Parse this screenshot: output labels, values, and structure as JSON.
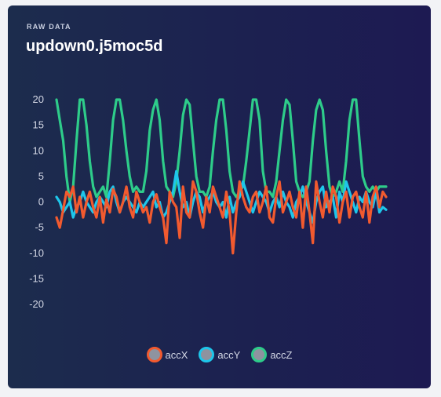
{
  "card": {
    "eyebrow": "RAW DATA",
    "title": "updown0.j5moc5d"
  },
  "chart_data": {
    "type": "line",
    "title": "",
    "xlabel": "",
    "ylabel": "",
    "ylim": [
      -20,
      20
    ],
    "yticks": [
      20,
      15,
      10,
      5,
      0,
      -5,
      -10,
      -15,
      -20
    ],
    "grid": false,
    "legend_position": "bottom-center",
    "series": [
      {
        "name": "accX",
        "color": "#f25a2f",
        "values": [
          -3.0,
          -5.0,
          -1.5,
          2.0,
          1.0,
          3.0,
          -2.0,
          1.0,
          -3.0,
          0.0,
          2.0,
          -1.0,
          -3.0,
          1.0,
          -4.0,
          0.5,
          -2.0,
          2.5,
          1.0,
          -2.0,
          0.0,
          3.0,
          -1.0,
          -3.0,
          2.0,
          0.0,
          -2.0,
          -1.0,
          -4.0,
          0.0,
          1.5,
          -1.0,
          -3.0,
          -8.0,
          2.0,
          0.0,
          -1.0,
          -7.0,
          3.0,
          -2.0,
          -3.0,
          4.0,
          2.0,
          -2.0,
          -5.0,
          1.0,
          -2.0,
          3.0,
          1.0,
          -1.0,
          -3.0,
          2.0,
          -2.0,
          -10.0,
          -2.0,
          4.0,
          1.0,
          -1.0,
          -2.0,
          1.0,
          2.0,
          -2.0,
          0.0,
          3.0,
          -3.0,
          -4.0,
          1.0,
          4.0,
          -2.0,
          0.0,
          2.0,
          -1.0,
          -3.0,
          2.0,
          -5.0,
          3.0,
          -2.0,
          -8.0,
          4.0,
          0.0,
          -3.0,
          2.0,
          -2.0,
          3.0,
          1.0,
          -4.0,
          0.0,
          2.0,
          -3.0,
          1.0,
          2.0,
          -1.0,
          -3.0,
          2.0,
          -4.0,
          1.0,
          3.0,
          -1.0,
          2.0,
          1.0
        ]
      },
      {
        "name": "accY",
        "color": "#1ec6ea",
        "values": [
          1.0,
          0.0,
          -2.0,
          -1.0,
          0.0,
          -3.0,
          -1.0,
          0.0,
          2.0,
          0.0,
          -1.0,
          -2.0,
          0.0,
          1.0,
          0.0,
          -1.0,
          2.0,
          3.0,
          0.0,
          -2.0,
          0.0,
          1.0,
          0.0,
          -1.0,
          -2.0,
          0.0,
          -1.0,
          0.0,
          1.0,
          2.0,
          -1.0,
          0.0,
          -3.0,
          -2.0,
          0.0,
          2.0,
          6.0,
          2.0,
          -1.0,
          0.0,
          -3.0,
          0.0,
          2.0,
          1.0,
          -2.0,
          0.0,
          1.0,
          2.0,
          0.0,
          -1.0,
          0.0,
          -3.0,
          1.0,
          -2.0,
          0.0,
          1.0,
          4.0,
          2.0,
          0.0,
          -2.0,
          0.0,
          2.0,
          1.0,
          0.0,
          -2.0,
          0.0,
          1.0,
          -1.0,
          2.0,
          0.0,
          -1.0,
          -3.0,
          0.0,
          1.0,
          3.0,
          0.0,
          -2.0,
          -4.0,
          0.0,
          2.0,
          3.0,
          -1.0,
          0.0,
          1.0,
          -3.0,
          2.0,
          0.0,
          4.0,
          2.0,
          0.0,
          -2.0,
          1.0,
          0.0,
          2.0,
          0.0,
          -1.0,
          2.0,
          -2.0,
          -1.0,
          -1.5
        ]
      },
      {
        "name": "accZ",
        "color": "#2ecc8a",
        "values": [
          20.0,
          16.0,
          12.0,
          5.0,
          0.0,
          3.0,
          12.0,
          20.0,
          20.0,
          15.0,
          8.0,
          3.0,
          1.0,
          2.0,
          3.0,
          1.0,
          8.0,
          16.0,
          20.0,
          20.0,
          16.0,
          10.0,
          5.0,
          2.0,
          3.0,
          2.0,
          2.0,
          6.0,
          14.0,
          18.0,
          20.0,
          16.0,
          8.0,
          3.0,
          2.0,
          1.0,
          4.0,
          10.0,
          17.0,
          20.0,
          19.0,
          12.0,
          5.0,
          2.0,
          2.0,
          1.0,
          3.0,
          10.0,
          16.0,
          20.0,
          20.0,
          14.0,
          6.0,
          2.0,
          1.0,
          2.0,
          3.0,
          8.0,
          14.0,
          20.0,
          20.0,
          16.0,
          6.0,
          2.0,
          2.0,
          1.0,
          4.0,
          10.0,
          16.0,
          20.0,
          19.0,
          12.0,
          4.0,
          2.0,
          1.0,
          2.0,
          4.0,
          12.0,
          18.0,
          20.0,
          18.0,
          10.0,
          3.0,
          1.0,
          2.0,
          4.0,
          2.0,
          8.0,
          16.0,
          20.0,
          20.0,
          12.0,
          5.0,
          3.0,
          2.0,
          3.0,
          2.0,
          3.0,
          3.0,
          3.0
        ]
      }
    ]
  }
}
